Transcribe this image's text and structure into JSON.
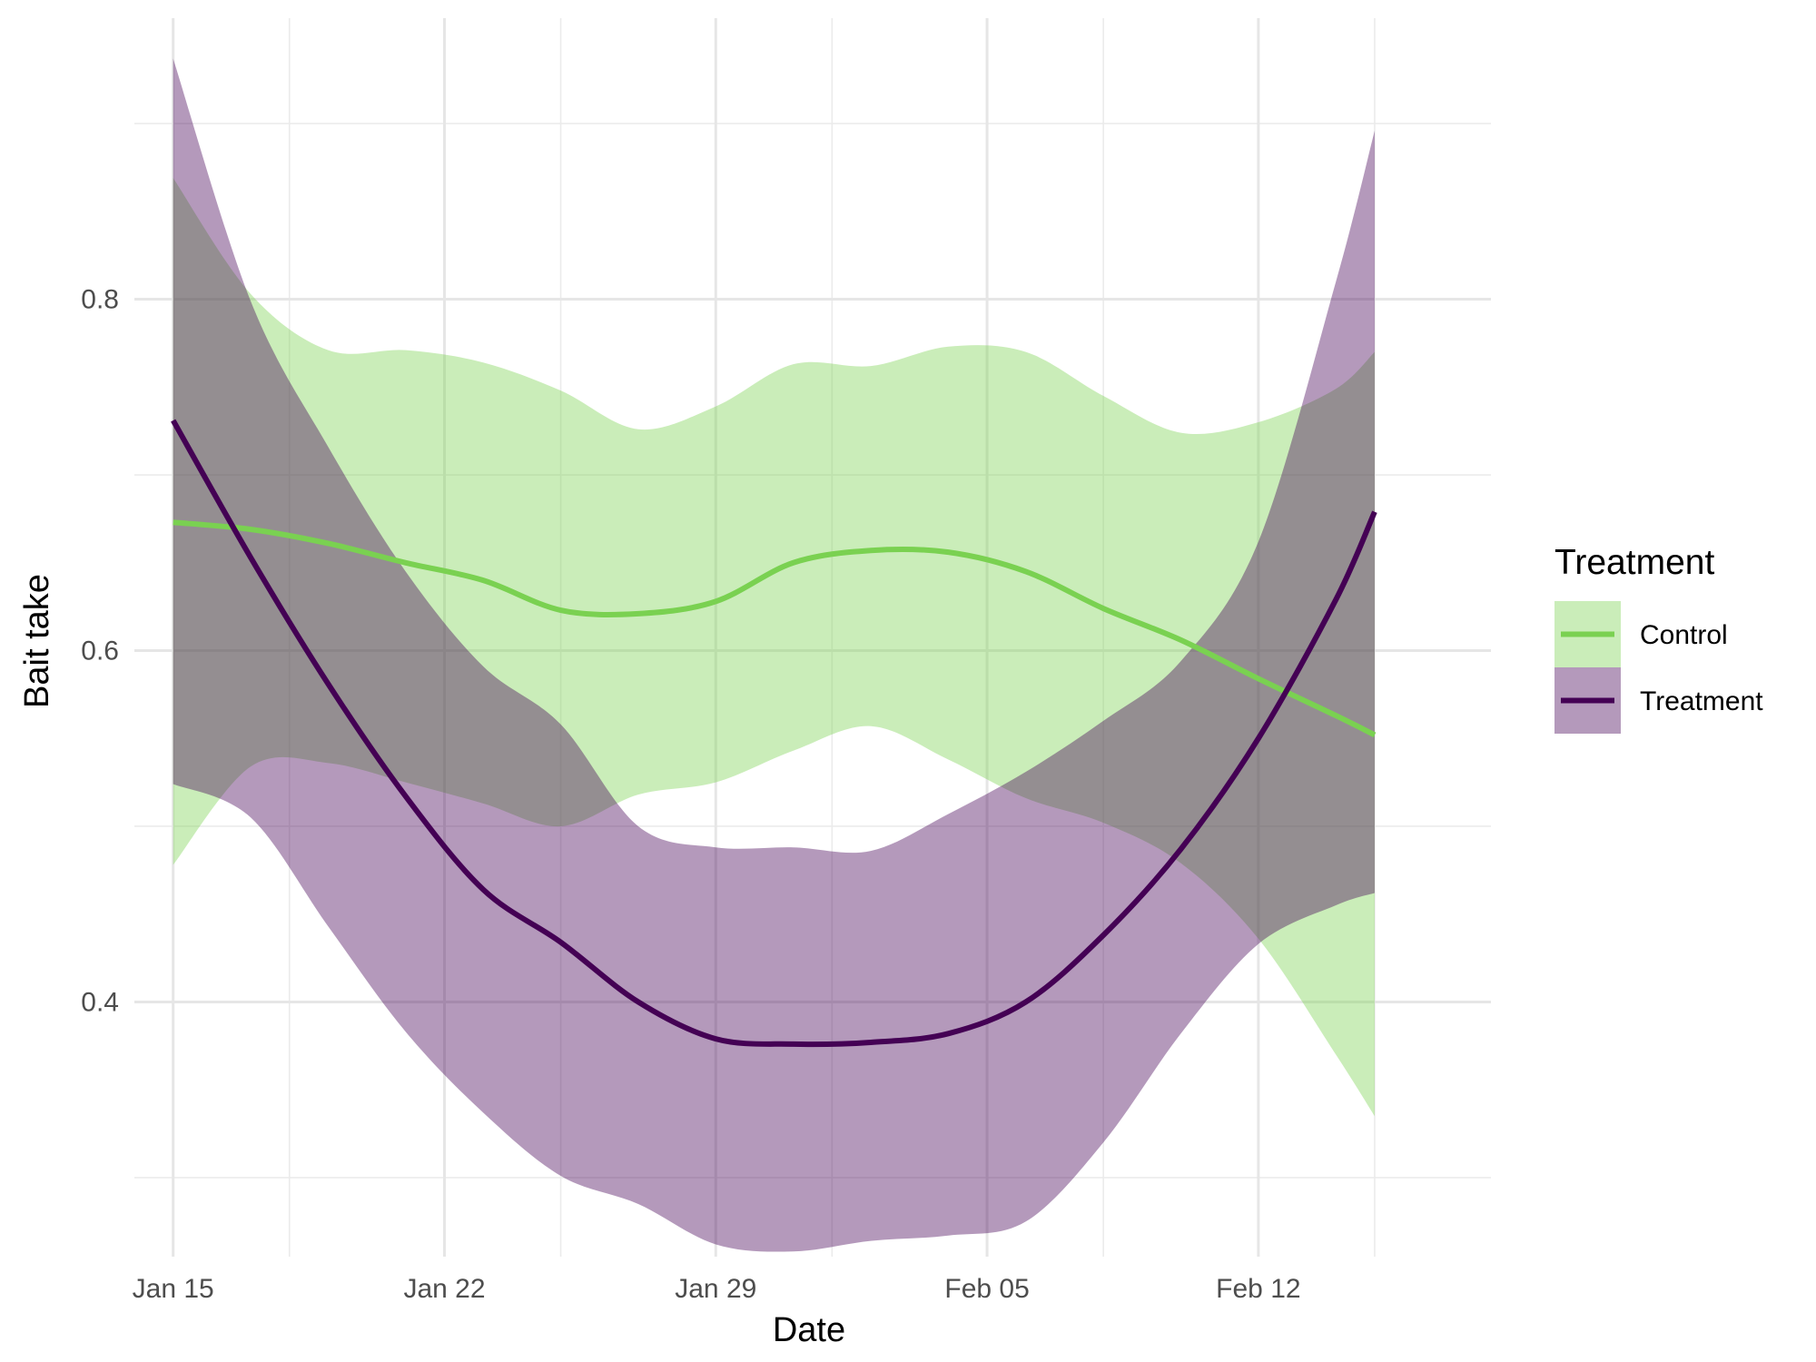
{
  "chart_data": {
    "type": "line",
    "xlabel": "Date",
    "ylabel": "Bait take",
    "x_ticks": [
      "Jan 15",
      "Jan 22",
      "Jan 29",
      "Feb 05",
      "Feb 12"
    ],
    "x_tick_dates": [
      "2024-01-15",
      "2024-01-22",
      "2024-01-29",
      "2024-02-05",
      "2024-02-12"
    ],
    "y_ticks": [
      "0.4",
      "0.6",
      "0.8"
    ],
    "y_tick_values": [
      0.4,
      0.6,
      0.8
    ],
    "xlim": [
      "2024-01-14",
      "2024-02-18"
    ],
    "ylim": [
      0.255,
      0.96
    ],
    "grid": true,
    "legend": {
      "title": "Treatment",
      "position": "right"
    },
    "x": [
      "2024-01-15",
      "2024-01-17",
      "2024-01-19",
      "2024-01-21",
      "2024-01-23",
      "2024-01-25",
      "2024-01-27",
      "2024-01-29",
      "2024-01-31",
      "2024-02-02",
      "2024-02-04",
      "2024-02-06",
      "2024-02-08",
      "2024-02-10",
      "2024-02-12",
      "2024-02-14",
      "2024-02-15"
    ],
    "series": [
      {
        "name": "Control",
        "color": "#7AD151",
        "values": [
          0.673,
          0.669,
          0.661,
          0.65,
          0.64,
          0.623,
          0.621,
          0.628,
          0.65,
          0.657,
          0.656,
          0.645,
          0.624,
          0.606,
          0.584,
          0.563,
          0.552
        ],
        "lower": [
          0.478,
          0.534,
          0.536,
          0.525,
          0.513,
          0.5,
          0.518,
          0.525,
          0.543,
          0.557,
          0.538,
          0.516,
          0.502,
          0.479,
          0.436,
          0.37,
          0.335
        ],
        "upper": [
          0.869,
          0.803,
          0.771,
          0.771,
          0.764,
          0.748,
          0.726,
          0.739,
          0.763,
          0.762,
          0.773,
          0.77,
          0.745,
          0.724,
          0.73,
          0.749,
          0.77
        ]
      },
      {
        "name": "Treatment",
        "color": "#440154",
        "values": [
          0.731,
          0.653,
          0.581,
          0.517,
          0.464,
          0.434,
          0.4,
          0.379,
          0.376,
          0.377,
          0.382,
          0.4,
          0.438,
          0.487,
          0.55,
          0.629,
          0.679
        ],
        "lower": [
          0.524,
          0.505,
          0.443,
          0.383,
          0.337,
          0.301,
          0.285,
          0.262,
          0.258,
          0.264,
          0.267,
          0.275,
          0.32,
          0.382,
          0.433,
          0.455,
          0.462
        ],
        "upper": [
          0.937,
          0.799,
          0.716,
          0.645,
          0.591,
          0.558,
          0.5,
          0.488,
          0.488,
          0.486,
          0.507,
          0.531,
          0.56,
          0.594,
          0.662,
          0.81,
          0.896
        ]
      }
    ]
  }
}
